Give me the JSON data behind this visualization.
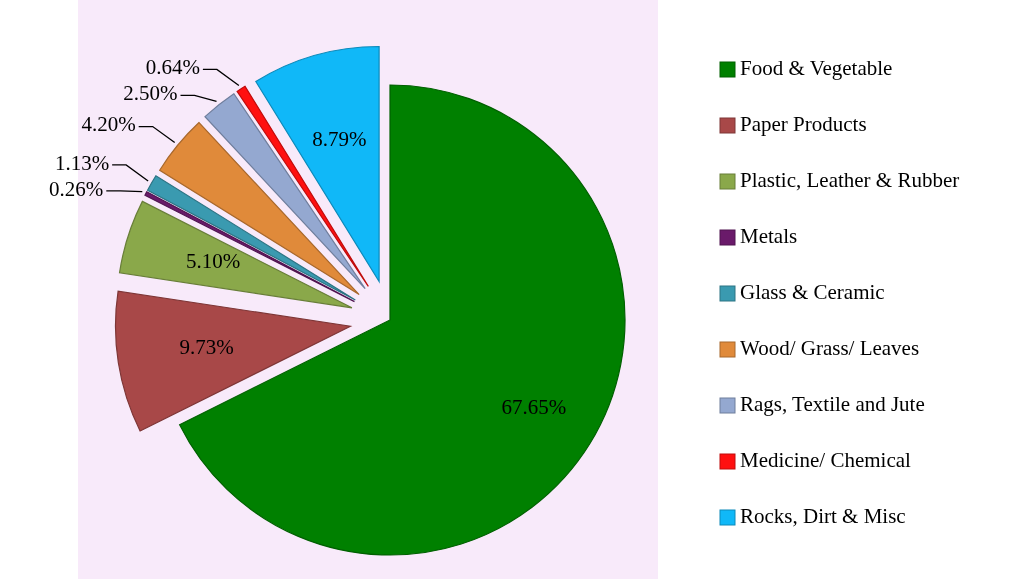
{
  "chart_data": {
    "type": "pie",
    "categories": [
      "Food & Vegetable",
      "Paper Products",
      "Plastic, Leather & Rubber",
      "Metals",
      "Glass & Ceramic",
      "Wood/ Grass/ Leaves",
      "Rags, Textile and Jute",
      "Medicine/ Chemical",
      "Rocks, Dirt & Misc"
    ],
    "values": [
      67.65,
      9.73,
      5.1,
      0.26,
      1.13,
      4.2,
      2.5,
      0.64,
      8.79
    ],
    "value_labels": [
      "67.65%",
      "9.73%",
      "5.10%",
      "0.26%",
      "1.13%",
      "4.20%",
      "2.50%",
      "0.64%",
      "8.79%"
    ],
    "colors": [
      "#008000",
      "#a84848",
      "#8aa84a",
      "#6a1a6a",
      "#3a9ab0",
      "#e08a3a",
      "#94a8d0",
      "#ff1010",
      "#10b8f8"
    ],
    "legend": "right"
  }
}
